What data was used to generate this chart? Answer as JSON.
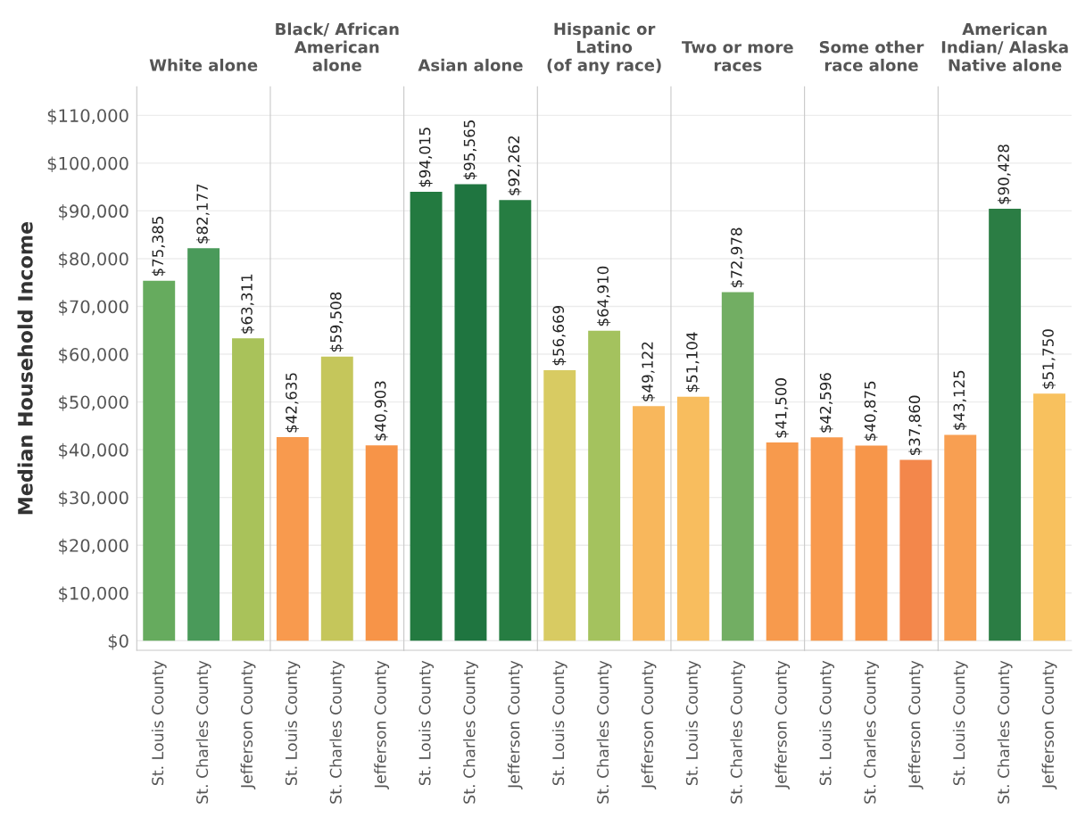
{
  "chart_data": [
    {
      "type": "bar",
      "title": "White alone",
      "ylabel": "Median Household Income",
      "categories": [
        "St. Louis County",
        "St. Charles County",
        "Jefferson County"
      ],
      "values": [
        75385,
        82177,
        63311
      ],
      "value_labels": [
        "$75,385",
        "$82,177",
        "$63,311"
      ],
      "colors": [
        "#66ab5e",
        "#4a9a5a",
        "#a9c25a"
      ],
      "ylim": [
        -2000,
        116000
      ],
      "yticks": [
        {
          "value": 0,
          "label": "$0"
        },
        {
          "value": 10000,
          "label": "$10,000"
        },
        {
          "value": 20000,
          "label": "$20,000"
        },
        {
          "value": 30000,
          "label": "$30,000"
        },
        {
          "value": 40000,
          "label": "$40,000"
        },
        {
          "value": 50000,
          "label": "$50,000"
        },
        {
          "value": 60000,
          "label": "$60,000"
        },
        {
          "value": 70000,
          "label": "$70,000"
        },
        {
          "value": 80000,
          "label": "$80,000"
        },
        {
          "value": 90000,
          "label": "$90,000"
        },
        {
          "value": 100000,
          "label": "$100,000"
        },
        {
          "value": 110000,
          "label": "$110,000"
        }
      ],
      "grid": "y"
    },
    {
      "type": "bar",
      "title": "Black/ African\nAmerican\nalone",
      "categories": [
        "St. Louis County",
        "St. Charles County",
        "Jefferson County"
      ],
      "values": [
        42635,
        59508,
        40903
      ],
      "value_labels": [
        "$42,635",
        "$59,508",
        "$40,903"
      ],
      "colors": [
        "#f89a4e",
        "#c5c65b",
        "#f79448"
      ],
      "ylim": [
        -2000,
        116000
      ],
      "yticks": [
        0,
        10000,
        20000,
        30000,
        40000,
        50000,
        60000,
        70000,
        80000,
        90000,
        100000,
        110000
      ],
      "grid": "y",
      "tick_labels": "x"
    },
    {
      "type": "bar",
      "title": "Asian alone",
      "categories": [
        "St. Louis County",
        "St. Charles County",
        "Jefferson County"
      ],
      "values": [
        94015,
        95565,
        92262
      ],
      "value_labels": [
        "$94,015",
        "$95,565",
        "$92,262"
      ],
      "colors": [
        "#237a40",
        "#1f7540",
        "#267d42"
      ],
      "ylim": [
        -2000,
        116000
      ],
      "yticks": [
        0,
        10000,
        20000,
        30000,
        40000,
        50000,
        60000,
        70000,
        80000,
        90000,
        100000,
        110000
      ],
      "grid": "y",
      "tick_labels": "x"
    },
    {
      "type": "bar",
      "title": "Hispanic or\nLatino\n(of any race)",
      "categories": [
        "St. Louis County",
        "St. Charles County",
        "Jefferson County"
      ],
      "values": [
        56669,
        64910,
        49122
      ],
      "value_labels": [
        "$56,669",
        "$64,910",
        "$49,122"
      ],
      "colors": [
        "#d8cb62",
        "#a4c25e",
        "#f8b75c"
      ],
      "ylim": [
        -2000,
        116000
      ],
      "yticks": [
        0,
        10000,
        20000,
        30000,
        40000,
        50000,
        60000,
        70000,
        80000,
        90000,
        100000,
        110000
      ],
      "grid": "y",
      "tick_labels": "x"
    },
    {
      "type": "bar",
      "title": "Two or more\nraces",
      "categories": [
        "St. Louis County",
        "St. Charles County",
        "Jefferson County"
      ],
      "values": [
        51104,
        72978,
        41500
      ],
      "value_labels": [
        "$51,104",
        "$72,978",
        "$41,500"
      ],
      "colors": [
        "#f8bd5e",
        "#72ae63",
        "#f79a4d"
      ],
      "ylim": [
        -2000,
        116000
      ],
      "yticks": [
        0,
        10000,
        20000,
        30000,
        40000,
        50000,
        60000,
        70000,
        80000,
        90000,
        100000,
        110000
      ],
      "grid": "y",
      "tick_labels": "x"
    },
    {
      "type": "bar",
      "title": "Some other\nrace alone",
      "categories": [
        "St. Louis County",
        "St. Charles County",
        "Jefferson County"
      ],
      "values": [
        42596,
        40875,
        37860
      ],
      "value_labels": [
        "$42,596",
        "$40,875",
        "$37,860"
      ],
      "colors": [
        "#f89a4e",
        "#f7964a",
        "#f3874b"
      ],
      "ylim": [
        -2000,
        116000
      ],
      "yticks": [
        0,
        10000,
        20000,
        30000,
        40000,
        50000,
        60000,
        70000,
        80000,
        90000,
        100000,
        110000
      ],
      "grid": "y",
      "tick_labels": "x"
    },
    {
      "type": "bar",
      "title": "American\nIndian/ Alaska\nNative alone",
      "categories": [
        "St. Louis County",
        "St. Charles County",
        "Jefferson County"
      ],
      "values": [
        43125,
        90428,
        51750
      ],
      "value_labels": [
        "$43,125",
        "$90,428",
        "$51,750"
      ],
      "colors": [
        "#f89f52",
        "#2b7d44",
        "#f8c15e"
      ],
      "ylim": [
        -2000,
        116000
      ],
      "yticks": [
        0,
        10000,
        20000,
        30000,
        40000,
        50000,
        60000,
        70000,
        80000,
        90000,
        100000,
        110000
      ],
      "grid": "y",
      "tick_labels": "x"
    }
  ]
}
